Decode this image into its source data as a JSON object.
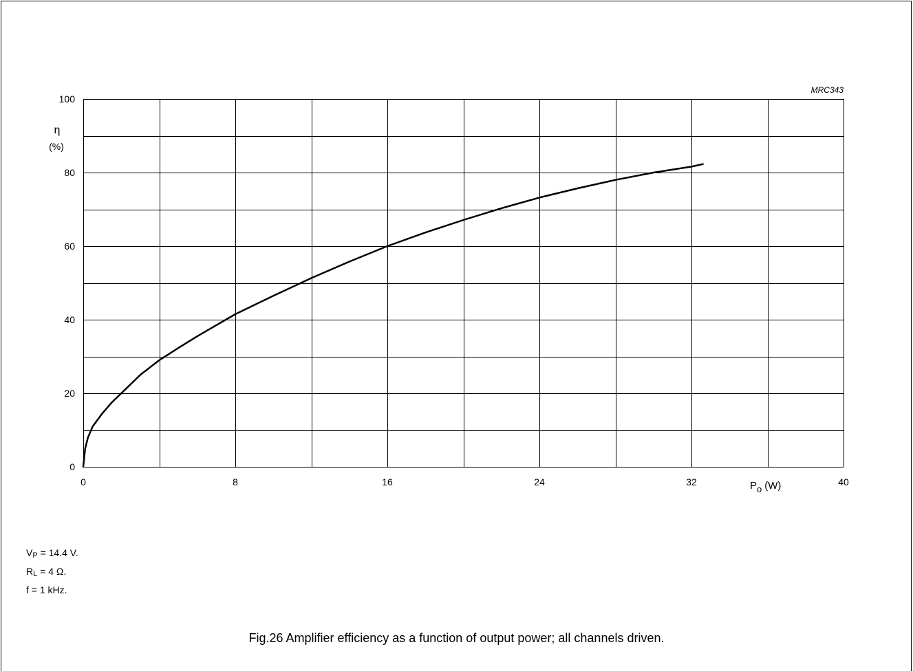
{
  "figure_id": "MRC343",
  "caption": "Fig.26  Amplifier efficiency as a function of output power; all channels driven.",
  "conditions": [
    {
      "main": "V",
      "sub": "P",
      "rest": " = 14.4 V."
    },
    {
      "main": "R",
      "sub": "L",
      "rest": " = 4 Ω."
    },
    {
      "main": "f",
      "sub": "",
      "rest": " = 1 kHz."
    }
  ],
  "chart_data": {
    "type": "line",
    "title": "",
    "xlabel": {
      "main": "P",
      "sub": "o",
      "unit": "(W)"
    },
    "ylabel": {
      "symbol": "η",
      "unit": "(%)"
    },
    "xlim": [
      0,
      40
    ],
    "ylim": [
      0,
      100
    ],
    "x_ticks": [
      "0",
      "8",
      "16",
      "24",
      "32",
      "40"
    ],
    "y_ticks": [
      "0",
      "20",
      "40",
      "60",
      "80",
      "100"
    ],
    "x_grid_step": 4,
    "y_grid_step": 10,
    "grid": true,
    "series": [
      {
        "x": [
          0,
          0.1,
          0.25,
          0.5,
          1,
          1.5,
          2,
          3,
          4,
          5,
          6,
          8,
          10,
          12,
          14,
          16,
          18,
          20,
          22,
          24,
          26,
          28,
          30,
          32,
          32.6
        ],
        "y": [
          0,
          5,
          8,
          11,
          14.5,
          17.5,
          20,
          25,
          29,
          32.3,
          35.5,
          41.5,
          46.5,
          51.3,
          55.8,
          60,
          63.7,
          67.1,
          70.3,
          73.2,
          75.7,
          78,
          80,
          81.6,
          82.3
        ]
      }
    ],
    "line_color": "#000000"
  }
}
